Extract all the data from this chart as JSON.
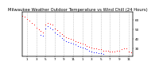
{
  "title": "Milwaukee Weather Outdoor Temperature vs Wind Chill (24 Hours)",
  "title_fontsize": 3.8,
  "background_color": "#ffffff",
  "grid_color": "#aaaaaa",
  "x_label_fontsize": 3.0,
  "y_label_fontsize": 3.0,
  "ylim": [
    22,
    68
  ],
  "xlim": [
    0,
    24
  ],
  "red_x": [
    0,
    0.5,
    1,
    1.5,
    2,
    2.5,
    3,
    3.5,
    4,
    4.5,
    5,
    5.5,
    6,
    6.5,
    7,
    7.5,
    8,
    8.5,
    9,
    9.5,
    10,
    10.5,
    11,
    11.5,
    12,
    12.5,
    13,
    13.5,
    14,
    14.5,
    15,
    15.5,
    16,
    16.5,
    17,
    17.5,
    18,
    18.5,
    19,
    19.5,
    20,
    20.5,
    21,
    21.5,
    22,
    22.5,
    23,
    23.5
  ],
  "red_y": [
    64,
    63,
    61,
    59,
    57,
    55,
    52,
    50,
    48,
    47,
    55,
    57,
    56,
    55,
    51,
    49,
    47,
    45,
    43,
    42,
    41,
    40,
    39,
    38,
    37,
    36,
    35,
    34,
    33,
    32,
    31,
    30,
    30,
    29,
    29,
    28,
    28,
    28,
    27,
    27,
    27,
    28,
    28,
    29,
    30,
    30,
    27,
    26
  ],
  "blue_x": [
    4,
    4.5,
    5,
    5.5,
    6,
    6.5,
    7,
    7.5,
    8,
    8.5,
    9,
    9.5,
    10,
    10.5,
    11,
    11.5,
    12,
    12.5,
    13,
    13.5,
    14,
    14.5,
    15,
    15.5,
    16,
    16.5,
    17,
    17.5
  ],
  "blue_y": [
    44,
    43,
    51,
    53,
    52,
    50,
    47,
    45,
    43,
    41,
    39,
    38,
    37,
    36,
    35,
    34,
    33,
    32,
    31,
    30,
    29,
    28,
    27,
    26,
    26,
    25,
    25,
    24
  ],
  "y_ticks": [
    30,
    40,
    50,
    60
  ],
  "y_tick_labels": [
    "30",
    "40",
    "50",
    "60"
  ],
  "x_ticks": [
    1,
    3,
    5,
    7,
    9,
    11,
    13,
    15,
    17,
    19,
    21,
    23
  ],
  "x_tick_labels": [
    "1",
    "3",
    "5",
    "7",
    "9",
    "11",
    "1",
    "3",
    "5",
    "7",
    "9",
    "11"
  ]
}
